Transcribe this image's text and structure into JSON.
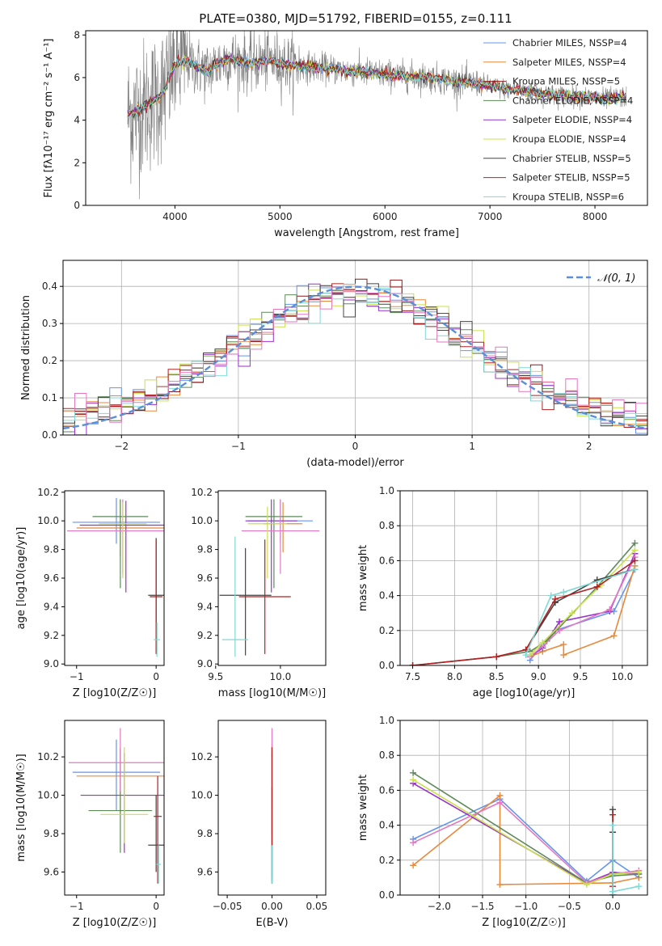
{
  "figure": {
    "title": "PLATE=0380, MJD=51792, FIBERID=0155, z=0.111"
  },
  "chart_data": [
    {
      "id": "spectrum",
      "type": "line",
      "xlabel": "wavelength [Angstrom, rest frame]",
      "ylabel": "Flux [fλ10⁻¹⁷ erg cm⁻² s⁻¹ A⁻¹]",
      "xlim": [
        3150,
        8500
      ],
      "ylim": [
        0,
        8.2
      ],
      "xticks": [
        4000,
        5000,
        6000,
        7000,
        8000
      ],
      "yticks": [
        0,
        2,
        4,
        6,
        8
      ],
      "legend_position": "top-right",
      "series": [
        {
          "name": "Chabrier MILES, NSSP=4",
          "color": "#6495ed"
        },
        {
          "name": "Salpeter MILES, NSSP=4",
          "color": "#e8893c"
        },
        {
          "name": "Kroupa MILES, NSSP=5",
          "color": "#8b1a1a"
        },
        {
          "name": "Chabrier ELODIE, NSSP=4",
          "color": "#5e8a5a"
        },
        {
          "name": "Salpeter ELODIE, NSSP=4",
          "color": "#9932cc"
        },
        {
          "name": "Kroupa ELODIE, NSSP=4",
          "color": "#c8e04a"
        },
        {
          "name": "Chabrier STELIB, NSSP=5",
          "color": "#444444"
        },
        {
          "name": "Salpeter STELIB, NSSP=5",
          "color": "#b22222"
        },
        {
          "name": "Kroupa STELIB, NSSP=6",
          "color": "#7fd9d5"
        }
      ],
      "model_curve": [
        [
          3600,
          4.3
        ],
        [
          3700,
          4.6
        ],
        [
          3800,
          4.9
        ],
        [
          3900,
          5.4
        ],
        [
          4000,
          6.6
        ],
        [
          4100,
          6.8
        ],
        [
          4300,
          6.3
        ],
        [
          4500,
          6.9
        ],
        [
          4700,
          6.7
        ],
        [
          4900,
          6.8
        ],
        [
          5100,
          6.6
        ],
        [
          5300,
          6.5
        ],
        [
          5500,
          6.4
        ],
        [
          5700,
          6.3
        ],
        [
          5900,
          6.2
        ],
        [
          6100,
          6.1
        ],
        [
          6300,
          6.05
        ],
        [
          6500,
          5.95
        ],
        [
          6700,
          5.8
        ],
        [
          6900,
          5.7
        ],
        [
          7100,
          5.5
        ],
        [
          7300,
          5.4
        ],
        [
          7500,
          5.25
        ],
        [
          7700,
          5.15
        ],
        [
          7900,
          5.1
        ],
        [
          8100,
          5.0
        ],
        [
          8300,
          5.1
        ]
      ],
      "data_color": "#808080"
    },
    {
      "id": "residual-hist",
      "type": "histogram",
      "xlabel": "(data-model)/error",
      "ylabel": "Normed distribution",
      "xlim": [
        -2.5,
        2.5
      ],
      "ylim": [
        0,
        0.47
      ],
      "xticks": [
        -2,
        -1,
        0,
        1,
        2
      ],
      "yticks": [
        0.0,
        0.1,
        0.2,
        0.3,
        0.4
      ],
      "grid": true,
      "legend": "𝒩(0, 1)",
      "gaussian": {
        "mean": 0,
        "sigma": 1,
        "color": "#5b8fd6"
      }
    },
    {
      "id": "age-vs-Z",
      "type": "errorbar",
      "xlabel": "Z [log10(Z/Z☉)]",
      "ylabel": "age  [log10(age/yr)]",
      "xlim": [
        -1.15,
        0.1
      ],
      "ylim": [
        8.99,
        10.21
      ],
      "xticks": [
        -1,
        0
      ],
      "yticks": [
        9.0,
        9.2,
        9.4,
        9.6,
        9.8,
        10.0,
        10.2
      ],
      "points": [
        {
          "x": -0.5,
          "xerr": 0.55,
          "y": 9.99,
          "yerr": [
            0.15,
            0.17
          ],
          "color": "#6495ed"
        },
        {
          "x": -0.45,
          "xerr": 0.55,
          "y": 9.95,
          "yerr": [
            0.2,
            0.2
          ],
          "color": "#e8893c"
        },
        {
          "x": -0.38,
          "xerr": 0.58,
          "y": 9.97,
          "yerr": [
            0.47,
            0.17
          ],
          "color": "#9932cc"
        },
        {
          "x": -0.45,
          "xerr": 0.35,
          "y": 10.03,
          "yerr": [
            0.5,
            0.12
          ],
          "color": "#5e8a5a"
        },
        {
          "x": -0.42,
          "xerr": 0.7,
          "y": 9.93,
          "yerr": [
            0.3,
            0.22
          ],
          "color": "#e377c2"
        },
        {
          "x": -0.42,
          "xerr": 0.3,
          "y": 9.98,
          "yerr": [
            0.38,
            0.15
          ],
          "color": "#c8e04a"
        },
        {
          "x": 0.0,
          "xerr": 0.1,
          "y": 9.48,
          "yerr": [
            0.4,
            0.4
          ],
          "color": "#444444"
        },
        {
          "x": 0.0,
          "xerr": 0.08,
          "y": 9.47,
          "yerr": [
            0.4,
            0.4
          ],
          "color": "#b22222"
        },
        {
          "x": 0.01,
          "xerr": 0.04,
          "y": 9.17,
          "yerr": [
            0.12,
            0.12
          ],
          "color": "#7fd9d5"
        }
      ]
    },
    {
      "id": "age-vs-mass",
      "type": "errorbar",
      "xlabel": "mass [log10(M/M☉)]",
      "ylabel": "",
      "xlim": [
        9.52,
        10.35
      ],
      "ylim": [
        8.99,
        10.21
      ],
      "xticks": [
        9.5,
        10.0
      ],
      "yticks": [
        9.0,
        9.2,
        9.4,
        9.6,
        9.8,
        10.0,
        10.2
      ],
      "points": [
        {
          "x": 10.0,
          "xerr": 0.25,
          "y": 10.0,
          "yerr": [
            0.15,
            0.15
          ],
          "color": "#6495ed"
        },
        {
          "x": 10.02,
          "xerr": 0.15,
          "y": 9.98,
          "yerr": [
            0.2,
            0.15
          ],
          "color": "#e8893c"
        },
        {
          "x": 9.93,
          "xerr": 0.2,
          "y": 10.0,
          "yerr": [
            0.5,
            0.15
          ],
          "color": "#9932cc"
        },
        {
          "x": 9.95,
          "xerr": 0.22,
          "y": 10.03,
          "yerr": [
            0.5,
            0.12
          ],
          "color": "#5e8a5a"
        },
        {
          "x": 10.0,
          "xerr": 0.3,
          "y": 9.93,
          "yerr": [
            0.3,
            0.22
          ],
          "color": "#e377c2"
        },
        {
          "x": 9.9,
          "xerr": 0.15,
          "y": 9.98,
          "yerr": [
            0.38,
            0.12
          ],
          "color": "#c8e04a"
        },
        {
          "x": 9.73,
          "xerr": 0.2,
          "y": 9.48,
          "yerr": [
            0.42,
            0.33
          ],
          "color": "#444444"
        },
        {
          "x": 9.88,
          "xerr": 0.2,
          "y": 9.47,
          "yerr": [
            0.4,
            0.4
          ],
          "color": "#b22222"
        },
        {
          "x": 9.65,
          "xerr": 0.1,
          "y": 9.17,
          "yerr": [
            0.12,
            0.72
          ],
          "color": "#7fd9d5"
        }
      ]
    },
    {
      "id": "massweight-vs-age",
      "type": "line",
      "xlabel": "age  [log10(age/yr)]",
      "ylabel": "mass weight",
      "xlim": [
        7.35,
        10.3
      ],
      "ylim": [
        0,
        1.0
      ],
      "xticks": [
        7.5,
        8.0,
        8.5,
        9.0,
        9.5,
        10.0
      ],
      "yticks": [
        0.0,
        0.2,
        0.4,
        0.6,
        0.8,
        1.0
      ],
      "grid": true,
      "series": [
        {
          "color": "#6495ed",
          "points": [
            [
              8.9,
              0.03
            ],
            [
              9.05,
              0.12
            ],
            [
              9.2,
              0.2
            ],
            [
              9.9,
              0.31
            ],
            [
              10.15,
              0.55
            ]
          ]
        },
        {
          "color": "#e8893c",
          "points": [
            [
              8.9,
              0.05
            ],
            [
              9.05,
              0.08
            ],
            [
              9.3,
              0.12
            ],
            [
              9.3,
              0.06
            ],
            [
              9.9,
              0.17
            ],
            [
              10.15,
              0.57
            ]
          ]
        },
        {
          "color": "#9932cc",
          "points": [
            [
              8.9,
              0.05
            ],
            [
              9.05,
              0.1
            ],
            [
              9.25,
              0.25
            ],
            [
              9.85,
              0.31
            ],
            [
              10.15,
              0.64
            ]
          ]
        },
        {
          "color": "#5e8a5a",
          "points": [
            [
              8.5,
              0.05
            ],
            [
              8.9,
              0.08
            ],
            [
              9.1,
              0.14
            ],
            [
              9.7,
              0.45
            ],
            [
              10.15,
              0.7
            ]
          ]
        },
        {
          "color": "#e377c2",
          "points": [
            [
              8.9,
              0.05
            ],
            [
              9.05,
              0.11
            ],
            [
              9.25,
              0.2
            ],
            [
              9.85,
              0.32
            ],
            [
              10.15,
              0.62
            ]
          ]
        },
        {
          "color": "#c8e04a",
          "points": [
            [
              8.9,
              0.06
            ],
            [
              9.05,
              0.13
            ],
            [
              9.4,
              0.3
            ],
            [
              9.75,
              0.46
            ],
            [
              10.15,
              0.66
            ]
          ]
        },
        {
          "color": "#444444",
          "points": [
            [
              7.5,
              0.0
            ],
            [
              8.5,
              0.05
            ],
            [
              8.85,
              0.09
            ],
            [
              9.2,
              0.36
            ],
            [
              9.7,
              0.49
            ],
            [
              10.15,
              0.55
            ]
          ]
        },
        {
          "color": "#b22222",
          "points": [
            [
              7.5,
              0.0
            ],
            [
              8.5,
              0.05
            ],
            [
              8.85,
              0.09
            ],
            [
              9.2,
              0.38
            ],
            [
              9.7,
              0.45
            ],
            [
              10.15,
              0.6
            ]
          ]
        },
        {
          "color": "#7fd9d5",
          "points": [
            [
              8.85,
              0.06
            ],
            [
              9.15,
              0.4
            ],
            [
              9.3,
              0.42
            ],
            [
              10.15,
              0.55
            ]
          ]
        }
      ]
    },
    {
      "id": "mass-vs-Z",
      "type": "errorbar",
      "xlabel": "Z [log10(Z/Z☉)]",
      "ylabel": "mass [log10(M/M☉)]",
      "xlim": [
        -1.15,
        0.1
      ],
      "ylim": [
        9.48,
        10.39
      ],
      "xticks": [
        -1,
        0
      ],
      "yticks": [
        9.6,
        9.8,
        10.0,
        10.2
      ],
      "points": [
        {
          "x": -0.5,
          "xerr": 0.55,
          "y": 10.12,
          "yerr": [
            0.2,
            0.17
          ],
          "color": "#6495ed"
        },
        {
          "x": -0.45,
          "xerr": 0.55,
          "y": 10.1,
          "yerr": [
            0.2,
            0.15
          ],
          "color": "#e8893c"
        },
        {
          "x": -0.4,
          "xerr": 0.55,
          "y": 10.0,
          "yerr": [
            0.3,
            0.22
          ],
          "color": "#9932cc"
        },
        {
          "x": -0.45,
          "xerr": 0.4,
          "y": 9.92,
          "yerr": [
            0.22,
            0.32
          ],
          "color": "#5e8a5a"
        },
        {
          "x": -0.45,
          "xerr": 0.65,
          "y": 10.17,
          "yerr": [
            0.15,
            0.18
          ],
          "color": "#e377c2"
        },
        {
          "x": -0.4,
          "xerr": 0.3,
          "y": 9.9,
          "yerr": [
            0.15,
            0.35
          ],
          "color": "#c8e04a"
        },
        {
          "x": 0.0,
          "xerr": 0.1,
          "y": 9.74,
          "yerr": [
            0.14,
            0.26
          ],
          "color": "#444444"
        },
        {
          "x": 0.02,
          "xerr": 0.05,
          "y": 9.89,
          "yerr": [
            0.35,
            0.21
          ],
          "color": "#b22222"
        },
        {
          "x": 0.03,
          "xerr": 0.03,
          "y": 9.64,
          "yerr": [
            0.1,
            0.1
          ],
          "color": "#7fd9d5"
        }
      ]
    },
    {
      "id": "mass-vs-ebv",
      "type": "errorbar",
      "xlabel": "E(B-V)",
      "ylabel": "",
      "xlim": [
        -0.06,
        0.06
      ],
      "ylim": [
        9.48,
        10.39
      ],
      "xticks": [
        -0.05,
        0.0,
        0.05
      ],
      "yticks": [
        9.6,
        9.8,
        10.0,
        10.2
      ],
      "points": [
        {
          "x": 0.0,
          "xerr": 0.0,
          "y": 10.12,
          "yerr": [
            0.2,
            0.15
          ],
          "color": "#6495ed"
        },
        {
          "x": 0.0,
          "xerr": 0.0,
          "y": 10.1,
          "yerr": [
            0.3,
            0.15
          ],
          "color": "#e8893c"
        },
        {
          "x": 0.0,
          "xerr": 0.0,
          "y": 10.0,
          "yerr": [
            0.45,
            0.25
          ],
          "color": "#9932cc"
        },
        {
          "x": 0.0,
          "xerr": 0.0,
          "y": 9.92,
          "yerr": [
            0.35,
            0.3
          ],
          "color": "#5e8a5a"
        },
        {
          "x": 0.0,
          "xerr": 0.0,
          "y": 10.17,
          "yerr": [
            0.2,
            0.18
          ],
          "color": "#e377c2"
        },
        {
          "x": 0.0,
          "xerr": 0.0,
          "y": 9.9,
          "yerr": [
            0.3,
            0.3
          ],
          "color": "#c8e04a"
        },
        {
          "x": 0.0,
          "xerr": 0.0,
          "y": 9.74,
          "yerr": [
            0.2,
            0.3
          ],
          "color": "#444444"
        },
        {
          "x": 0.0,
          "xerr": 0.0,
          "y": 9.89,
          "yerr": [
            0.35,
            0.36
          ],
          "color": "#b22222"
        },
        {
          "x": 0.0,
          "xerr": 0.0,
          "y": 9.64,
          "yerr": [
            0.1,
            0.1
          ],
          "color": "#7fd9d5"
        }
      ]
    },
    {
      "id": "massweight-vs-Z",
      "type": "line",
      "xlabel": "Z [log10(Z/Z☉)]",
      "ylabel": "mass weight",
      "xlim": [
        -2.45,
        0.4
      ],
      "ylim": [
        0,
        1.0
      ],
      "xticks": [
        -2.0,
        -1.5,
        -1.0,
        -0.5,
        0.0
      ],
      "yticks": [
        0.0,
        0.2,
        0.4,
        0.6,
        0.8,
        1.0
      ],
      "grid": true,
      "series": [
        {
          "color": "#6495ed",
          "points": [
            [
              -2.3,
              0.32
            ],
            [
              -1.3,
              0.55
            ],
            [
              -0.3,
              0.08
            ],
            [
              0.0,
              0.2
            ],
            [
              0.3,
              0.1
            ]
          ]
        },
        {
          "color": "#e8893c",
          "points": [
            [
              -2.3,
              0.17
            ],
            [
              -1.3,
              0.57
            ],
            [
              -1.3,
              0.06
            ],
            [
              0.0,
              0.07
            ],
            [
              0.3,
              0.1
            ]
          ]
        },
        {
          "color": "#9932cc",
          "points": [
            [
              -2.3,
              0.64
            ],
            [
              -0.3,
              0.07
            ],
            [
              0.0,
              0.13
            ],
            [
              0.3,
              0.12
            ]
          ]
        },
        {
          "color": "#5e8a5a",
          "points": [
            [
              -2.3,
              0.7
            ],
            [
              -0.3,
              0.07
            ],
            [
              0.0,
              0.11
            ],
            [
              0.3,
              0.12
            ]
          ]
        },
        {
          "color": "#e377c2",
          "points": [
            [
              -2.3,
              0.3
            ],
            [
              -1.3,
              0.53
            ],
            [
              -0.3,
              0.07
            ],
            [
              0.0,
              0.12
            ],
            [
              0.3,
              0.14
            ]
          ]
        },
        {
          "color": "#c8e04a",
          "points": [
            [
              -2.3,
              0.66
            ],
            [
              -0.3,
              0.06
            ],
            [
              0.0,
              0.12
            ],
            [
              0.3,
              0.13
            ]
          ]
        },
        {
          "color": "#444444",
          "points": [
            [
              0.0,
              0.0
            ],
            [
              0.0,
              0.49
            ],
            [
              0.0,
              0.36
            ]
          ]
        },
        {
          "color": "#b22222",
          "points": [
            [
              0.0,
              0.05
            ],
            [
              0.0,
              0.46
            ]
          ]
        },
        {
          "color": "#7fd9d5",
          "points": [
            [
              0.0,
              0.0
            ],
            [
              0.0,
              0.4
            ],
            [
              0.0,
              0.02
            ],
            [
              0.3,
              0.05
            ]
          ]
        }
      ]
    }
  ]
}
